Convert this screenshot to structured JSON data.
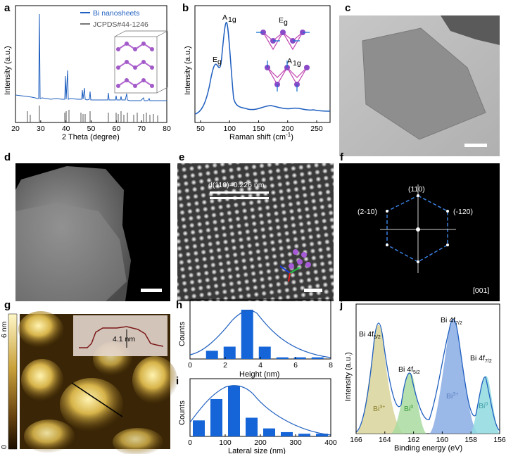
{
  "panels": {
    "a": {
      "label": "a",
      "ylabel": "Intensity (a.u.)",
      "xlabel": "2 Theta (degree)",
      "xticks": [
        "20",
        "30",
        "40",
        "50",
        "60",
        "70",
        "80"
      ],
      "legend": [
        "Bi nanosheets",
        "JCPDS#44-1246"
      ]
    },
    "b": {
      "label": "b",
      "ylabel": "Intensity (a.u.)",
      "xlabel": "Raman shift (cm",
      "xlabel_sup": "-1",
      "xlabel_end": ")",
      "xticks": [
        "50",
        "100",
        "150",
        "200",
        "250"
      ],
      "peak_a1g": "A",
      "peak_a1g_sub": "1g",
      "peak_eg": "E",
      "peak_eg_sub": "g",
      "inset_eg": "E",
      "inset_eg_sub": "g",
      "inset_a1g": "A",
      "inset_a1g_sub": "1g"
    },
    "c": {
      "label": "c"
    },
    "d": {
      "label": "d"
    },
    "e": {
      "label": "e",
      "dspacing": "d(110)=0.226 nm"
    },
    "f": {
      "label": "f",
      "spot_top": "(110)",
      "spot_left": "(2-10)",
      "spot_right": "(-120)",
      "zone": "[001]"
    },
    "g": {
      "label": "g",
      "cbar_top": "6 nm",
      "cbar_bottom": "0",
      "height": "4.1 nm"
    },
    "h": {
      "label": "h",
      "ylabel": "Counts",
      "xlabel": "Height (nm)",
      "xticks": [
        "0",
        "2",
        "4",
        "6",
        "8"
      ]
    },
    "i": {
      "label": "i",
      "ylabel": "Counts",
      "xlabel": "Lateral size (nm)",
      "xticks": [
        "0",
        "100",
        "200",
        "300",
        "400"
      ]
    },
    "j": {
      "label": "j",
      "ylabel": "Intensity (a.u.)",
      "xlabel": "Binding energy (eV)",
      "xticks": [
        "166",
        "164",
        "162",
        "160",
        "158",
        "156"
      ],
      "peaks": [
        {
          "name": "Bi 4f",
          "sub": "5/2",
          "species": "Bi",
          "sup": "3+"
        },
        {
          "name": "Bi 4f",
          "sub": "5/2",
          "species": "Bi",
          "sup": "0"
        },
        {
          "name": "Bi 4f",
          "sub": "7/2",
          "species": "Bi",
          "sup": "3+"
        },
        {
          "name": "Bi 4f",
          "sub": "7/2",
          "species": "Bi",
          "sup": "0"
        }
      ]
    }
  },
  "colors": {
    "blue": "#1f5fbf",
    "hist": "#1565d8",
    "xpsfill1": "#d8d39a",
    "xpsfill2": "#a9dba0",
    "xpsfill3": "#8fb0e6",
    "xpsfill4": "#8fdbe0"
  },
  "chart_data": [
    {
      "type": "bar",
      "panel": "h",
      "x": [
        1.25,
        2.25,
        3.25,
        4.25,
        5.25,
        6.25,
        7.25
      ],
      "values": [
        2,
        3,
        12,
        3,
        0.4,
        0.4,
        0.4
      ],
      "xlabel": "Height (nm)",
      "ylabel": "Counts",
      "xlim": [
        0,
        8
      ]
    },
    {
      "type": "bar",
      "panel": "i",
      "x": [
        25,
        75,
        125,
        175,
        225,
        275,
        325,
        375
      ],
      "values": [
        3,
        7,
        9.5,
        3.5,
        1.5,
        0.8,
        0.5,
        0.5
      ],
      "xlabel": "Lateral size (nm)",
      "ylabel": "Counts",
      "xlim": [
        0,
        400
      ]
    }
  ]
}
